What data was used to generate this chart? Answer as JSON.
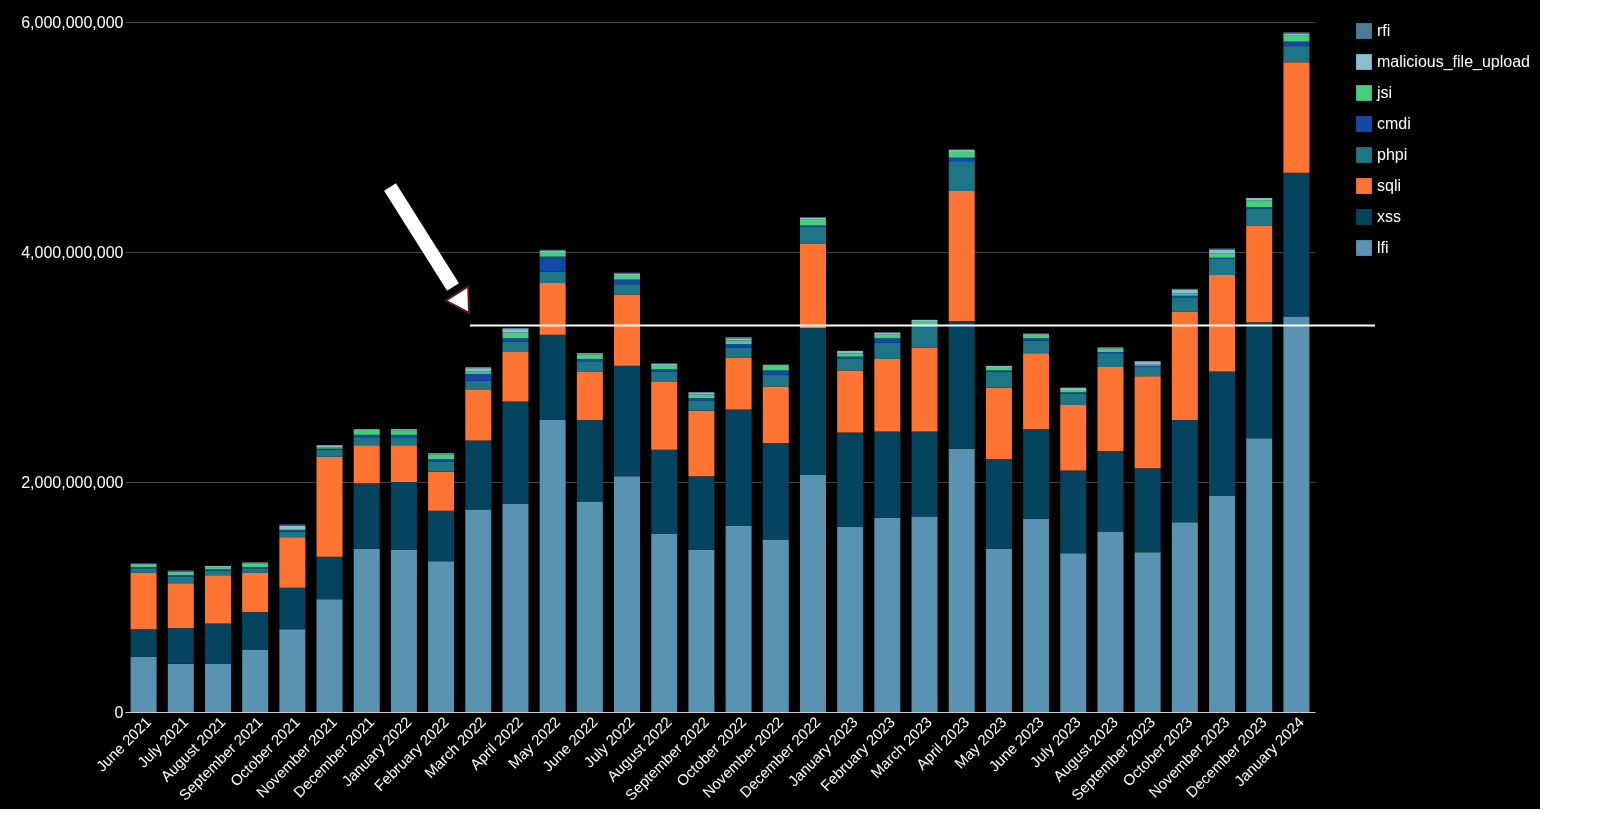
{
  "chart_data": {
    "type": "bar",
    "stacked": true,
    "categories": [
      "June 2021",
      "July 2021",
      "August 2021",
      "September 2021",
      "October 2021",
      "November 2021",
      "December 2021",
      "January 2022",
      "February 2022",
      "March 2022",
      "April 2022",
      "May 2022",
      "June 2022",
      "July 2022",
      "August 2022",
      "September 2022",
      "October 2022",
      "November 2022",
      "December 2022",
      "January 2023",
      "February 2023",
      "March 2023",
      "April 2023",
      "May 2023",
      "June 2023",
      "July 2023",
      "August 2023",
      "September 2023",
      "October 2023",
      "November 2023",
      "December 2023",
      "January 2024"
    ],
    "series": [
      {
        "name": "lfi",
        "color": "#5a93b2",
        "values": [
          480000000,
          420000000,
          420000000,
          540000000,
          720000000,
          980000000,
          1420000000,
          1410000000,
          1310000000,
          1760000000,
          1810000000,
          2540000000,
          1830000000,
          2050000000,
          1550000000,
          1410000000,
          1620000000,
          1500000000,
          2060000000,
          1610000000,
          1690000000,
          1700000000,
          2290000000,
          1420000000,
          1680000000,
          1380000000,
          1570000000,
          1390000000,
          1650000000,
          1880000000,
          2380000000,
          3440000000
        ]
      },
      {
        "name": "xss",
        "color": "#04445f",
        "values": [
          240000000,
          310000000,
          350000000,
          330000000,
          360000000,
          370000000,
          570000000,
          590000000,
          440000000,
          600000000,
          890000000,
          740000000,
          710000000,
          960000000,
          730000000,
          640000000,
          1010000000,
          840000000,
          1280000000,
          820000000,
          750000000,
          740000000,
          1110000000,
          780000000,
          780000000,
          720000000,
          700000000,
          730000000,
          890000000,
          1080000000,
          1010000000,
          1250000000
        ]
      },
      {
        "name": "sqli",
        "color": "#ff7433",
        "values": [
          490000000,
          390000000,
          420000000,
          340000000,
          440000000,
          870000000,
          330000000,
          320000000,
          340000000,
          440000000,
          430000000,
          450000000,
          420000000,
          620000000,
          590000000,
          570000000,
          450000000,
          490000000,
          730000000,
          540000000,
          630000000,
          730000000,
          1130000000,
          620000000,
          660000000,
          570000000,
          730000000,
          800000000,
          940000000,
          840000000,
          840000000,
          960000000
        ]
      },
      {
        "name": "phpi",
        "color": "#1e7585",
        "values": [
          40000000,
          60000000,
          40000000,
          40000000,
          50000000,
          60000000,
          70000000,
          70000000,
          90000000,
          80000000,
          90000000,
          100000000,
          90000000,
          90000000,
          90000000,
          90000000,
          90000000,
          100000000,
          150000000,
          100000000,
          140000000,
          190000000,
          260000000,
          140000000,
          110000000,
          100000000,
          120000000,
          80000000,
          120000000,
          140000000,
          150000000,
          140000000
        ]
      },
      {
        "name": "cmdi",
        "color": "#1448a8",
        "values": [
          10000000,
          10000000,
          10000000,
          10000000,
          10000000,
          10000000,
          20000000,
          20000000,
          20000000,
          60000000,
          30000000,
          130000000,
          20000000,
          40000000,
          20000000,
          20000000,
          30000000,
          40000000,
          10000000,
          20000000,
          40000000,
          null,
          30000000,
          10000000,
          20000000,
          10000000,
          10000000,
          10000000,
          20000000,
          10000000,
          10000000,
          40000000
        ]
      },
      {
        "name": "jsi",
        "color": "#45cf7c",
        "values": [
          20000000,
          20000000,
          20000000,
          30000000,
          10000000,
          10000000,
          50000000,
          40000000,
          40000000,
          20000000,
          50000000,
          40000000,
          40000000,
          40000000,
          30000000,
          30000000,
          30000000,
          40000000,
          50000000,
          30000000,
          30000000,
          40000000,
          50000000,
          30000000,
          30000000,
          20000000,
          30000000,
          10000000,
          20000000,
          40000000,
          60000000,
          50000000
        ]
      },
      {
        "name": "malicious_file_upload",
        "color": "#8cbcd0",
        "values": [
          10000000,
          10000000,
          10000000,
          10000000,
          30000000,
          20000000,
          0,
          10000000,
          10000000,
          30000000,
          30000000,
          10000000,
          10000000,
          10000000,
          20000000,
          20000000,
          20000000,
          10000000,
          20000000,
          20000000,
          20000000,
          10000000,
          20000000,
          10000000,
          10000000,
          20000000,
          10000000,
          30000000,
          30000000,
          30000000,
          20000000,
          20000000
        ]
      },
      {
        "name": "rfi",
        "color": "#4a7d96",
        "values": [
          0,
          10000000,
          0,
          0,
          10000000,
          0,
          0,
          0,
          0,
          10000000,
          10000000,
          10000000,
          0,
          10000000,
          0,
          0,
          10000000,
          0,
          0,
          0,
          0,
          0,
          0,
          0,
          0,
          0,
          0,
          0,
          10000000,
          10000000,
          0,
          10000000
        ]
      }
    ],
    "ylim": [
      0,
      6000000000
    ],
    "yticks": [
      0,
      {
        "value": 2000000000,
        "label": "2,000,000,000"
      },
      {
        "value": 4000000000,
        "label": "4,000,000,000"
      },
      {
        "value": 6000000000,
        "label": "6,000,000,000"
      }
    ],
    "grid": "y",
    "legend": "top right",
    "ref_lines": [
      {
        "axis": "y",
        "value": 3360000000,
        "label": null,
        "color": "#ffffff"
      }
    ]
  }
}
